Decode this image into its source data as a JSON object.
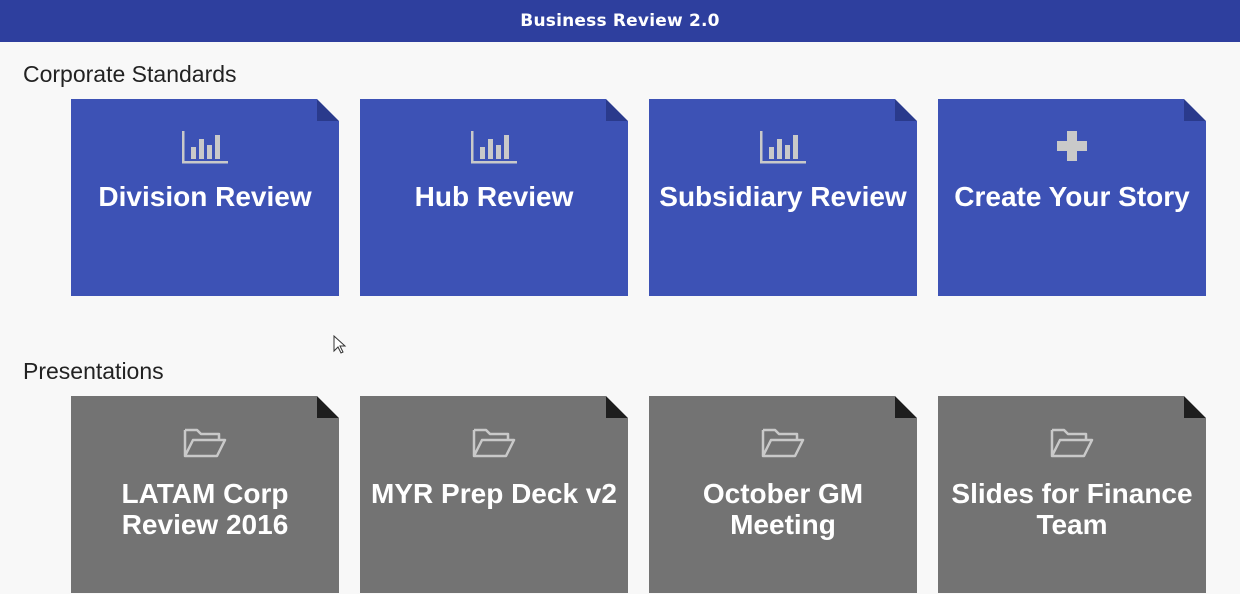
{
  "header": {
    "title": "Business Review 2.0"
  },
  "sections": {
    "corporate": {
      "title": "Corporate Standards",
      "tiles": [
        {
          "label": "Division Review",
          "icon": "bar-chart-icon"
        },
        {
          "label": "Hub Review",
          "icon": "bar-chart-icon"
        },
        {
          "label": "Subsidiary Review",
          "icon": "bar-chart-icon"
        },
        {
          "label": "Create Your Story",
          "icon": "plus-icon"
        }
      ]
    },
    "presentations": {
      "title": "Presentations",
      "tiles": [
        {
          "label": "LATAM Corp Review 2016",
          "icon": "folder-icon"
        },
        {
          "label": "MYR Prep Deck v2",
          "icon": "folder-icon"
        },
        {
          "label": "October GM Meeting",
          "icon": "folder-icon"
        },
        {
          "label": "Slides for Finance Team",
          "icon": "folder-icon"
        }
      ]
    }
  },
  "colors": {
    "header": "#2e3f9e",
    "tile_blue": "#3d52b5",
    "tile_blue_fold": "#2a3a8c",
    "tile_gray": "#737373",
    "tile_gray_fold": "#1e1e1e",
    "icon_light": "#c9c9c9"
  }
}
